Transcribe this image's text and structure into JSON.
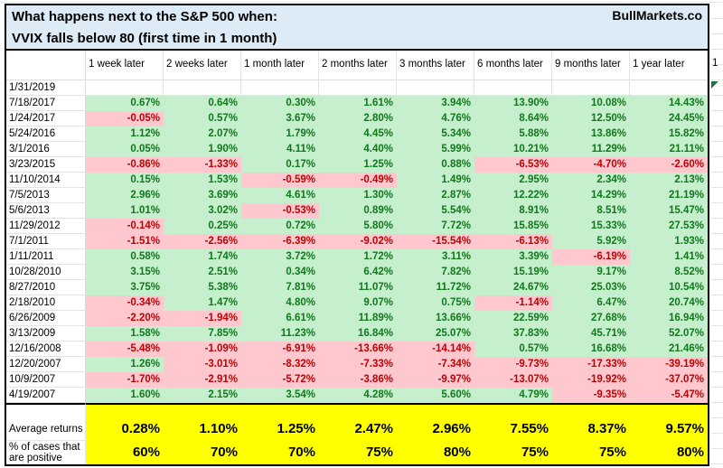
{
  "header": {
    "title_line1": "What happens next to the S&P 500 when:",
    "title_line2": "VVIX falls below 80 (first time in 1 month)",
    "brand": "BullMarkets.co"
  },
  "table": {
    "column_headers": [
      "1 week later",
      "2 weeks later",
      "1 month later",
      "2 months later",
      "3 months later",
      "6 months later",
      "9 months later",
      "1 year later"
    ],
    "rows": [
      {
        "date": "1/31/2019",
        "values": [
          "",
          "",
          "",
          "",
          "",
          "",
          "",
          ""
        ]
      },
      {
        "date": "7/18/2017",
        "values": [
          "0.67%",
          "0.64%",
          "0.30%",
          "1.61%",
          "3.94%",
          "13.90%",
          "10.08%",
          "14.43%"
        ]
      },
      {
        "date": "1/24/2017",
        "values": [
          "-0.05%",
          "0.57%",
          "3.67%",
          "2.80%",
          "4.76%",
          "8.64%",
          "12.50%",
          "24.45%"
        ]
      },
      {
        "date": "5/24/2016",
        "values": [
          "1.12%",
          "2.07%",
          "1.79%",
          "4.45%",
          "5.34%",
          "5.88%",
          "13.86%",
          "15.82%"
        ]
      },
      {
        "date": "3/1/2016",
        "values": [
          "0.05%",
          "1.90%",
          "4.11%",
          "4.40%",
          "5.99%",
          "10.21%",
          "11.29%",
          "21.11%"
        ]
      },
      {
        "date": "3/23/2015",
        "values": [
          "-0.86%",
          "-1.33%",
          "0.17%",
          "1.25%",
          "0.88%",
          "-6.53%",
          "-4.70%",
          "-2.60%"
        ]
      },
      {
        "date": "11/10/2014",
        "values": [
          "0.15%",
          "1.53%",
          "-0.59%",
          "-0.49%",
          "1.49%",
          "2.95%",
          "2.34%",
          "2.13%"
        ]
      },
      {
        "date": "7/5/2013",
        "values": [
          "2.96%",
          "3.69%",
          "4.61%",
          "1.30%",
          "2.87%",
          "12.22%",
          "14.29%",
          "21.19%"
        ]
      },
      {
        "date": "5/6/2013",
        "values": [
          "1.01%",
          "3.02%",
          "-0.53%",
          "0.89%",
          "5.54%",
          "8.91%",
          "8.51%",
          "15.47%"
        ]
      },
      {
        "date": "11/29/2012",
        "values": [
          "-0.14%",
          "0.25%",
          "0.72%",
          "5.80%",
          "7.72%",
          "15.85%",
          "15.33%",
          "27.53%"
        ]
      },
      {
        "date": "7/1/2011",
        "values": [
          "-1.51%",
          "-2.56%",
          "-6.39%",
          "-9.02%",
          "-15.54%",
          "-6.13%",
          "5.92%",
          "1.93%"
        ]
      },
      {
        "date": "1/11/2011",
        "values": [
          "0.58%",
          "1.74%",
          "3.72%",
          "1.72%",
          "3.11%",
          "3.39%",
          "-6.19%",
          "1.41%"
        ]
      },
      {
        "date": "10/28/2010",
        "values": [
          "3.15%",
          "2.51%",
          "0.34%",
          "6.42%",
          "7.82%",
          "15.19%",
          "9.17%",
          "8.52%"
        ]
      },
      {
        "date": "8/27/2010",
        "values": [
          "3.75%",
          "5.38%",
          "7.81%",
          "11.07%",
          "11.72%",
          "24.67%",
          "25.03%",
          "10.54%"
        ]
      },
      {
        "date": "2/18/2010",
        "values": [
          "-0.34%",
          "1.47%",
          "4.80%",
          "9.07%",
          "0.75%",
          "-1.14%",
          "6.47%",
          "20.74%"
        ]
      },
      {
        "date": "6/26/2009",
        "values": [
          "-2.20%",
          "-1.94%",
          "6.61%",
          "11.89%",
          "13.66%",
          "22.59%",
          "27.68%",
          "16.94%"
        ]
      },
      {
        "date": "3/13/2009",
        "values": [
          "1.58%",
          "7.85%",
          "11.23%",
          "16.84%",
          "25.07%",
          "37.83%",
          "45.71%",
          "52.07%"
        ]
      },
      {
        "date": "12/16/2008",
        "values": [
          "-5.48%",
          "-1.09%",
          "-6.91%",
          "-13.66%",
          "-14.14%",
          "0.57%",
          "16.68%",
          "21.46%"
        ]
      },
      {
        "date": "12/20/2007",
        "values": [
          "1.26%",
          "-3.01%",
          "-8.32%",
          "-7.33%",
          "-7.34%",
          "-9.73%",
          "-17.33%",
          "-39.19%"
        ]
      },
      {
        "date": "10/9/2007",
        "values": [
          "-1.70%",
          "-2.91%",
          "-5.72%",
          "-3.86%",
          "-9.97%",
          "-13.07%",
          "-19.92%",
          "-37.07%"
        ]
      },
      {
        "date": "4/19/2007",
        "values": [
          "1.60%",
          "2.15%",
          "3.54%",
          "4.28%",
          "5.60%",
          "4.79%",
          "-9.35%",
          "-5.47%"
        ]
      }
    ],
    "summary": {
      "avg_label": "Average returns",
      "avg_values": [
        "0.28%",
        "1.10%",
        "1.25%",
        "2.47%",
        "2.96%",
        "7.55%",
        "8.37%",
        "9.57%"
      ],
      "pct_label": "% of cases that are positive",
      "pct_values": [
        "60%",
        "70%",
        "70%",
        "75%",
        "80%",
        "75%",
        "75%",
        "80%"
      ]
    }
  },
  "right_edge": {
    "partial_header": "1"
  },
  "colors": {
    "title_bg": "#ddebf7",
    "positive_bg": "#c6efce",
    "positive_text": "#0e7a18",
    "negative_bg": "#ffc7ce",
    "negative_text": "#c00000",
    "summary_bg": "#ffff00",
    "gridline": "#e4e4e4",
    "border": "#000000",
    "flag_green": "#1e7145"
  }
}
